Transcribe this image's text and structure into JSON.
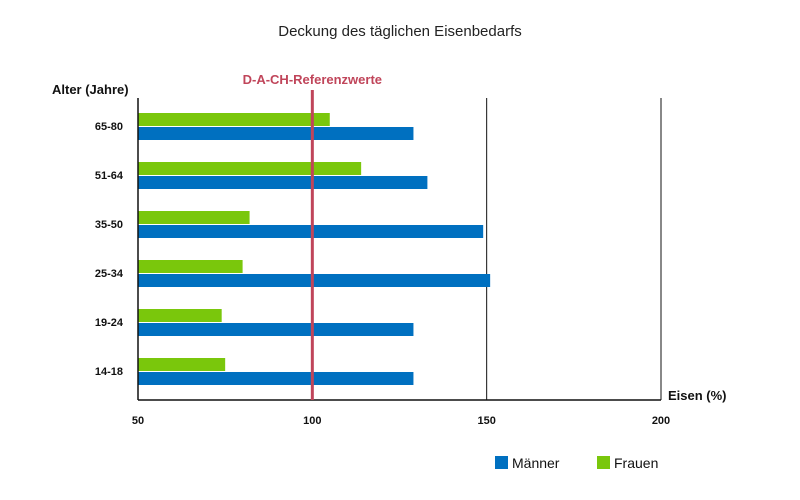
{
  "chart_data": {
    "type": "bar",
    "orientation": "horizontal",
    "title": "Deckung des täglichen Eisenbedarfs",
    "xlabel": "Eisen (%)",
    "ylabel": "Alter (Jahre)",
    "xlim": [
      50,
      200
    ],
    "xticks": [
      "50",
      "100",
      "150",
      "200"
    ],
    "xtick_values": [
      50,
      100,
      150,
      200
    ],
    "categories": [
      "65-80",
      "51-64",
      "35-50",
      "25-34",
      "19-24",
      "14-18"
    ],
    "series": [
      {
        "name": "Frauen",
        "color": "#7ac70c",
        "values": [
          105,
          114,
          82,
          80,
          74,
          75
        ]
      },
      {
        "name": "Männer",
        "color": "#0070c0",
        "values": [
          129,
          133,
          149,
          151,
          129,
          129
        ]
      }
    ],
    "reference_line": {
      "label": "D-A-CH-Referenzwerte",
      "value": 100,
      "color": "#c0455a"
    },
    "legend": {
      "placement": "bottom-right",
      "order": [
        "Männer",
        "Frauen"
      ]
    },
    "grid": "vertical lines at 150 and 200"
  }
}
